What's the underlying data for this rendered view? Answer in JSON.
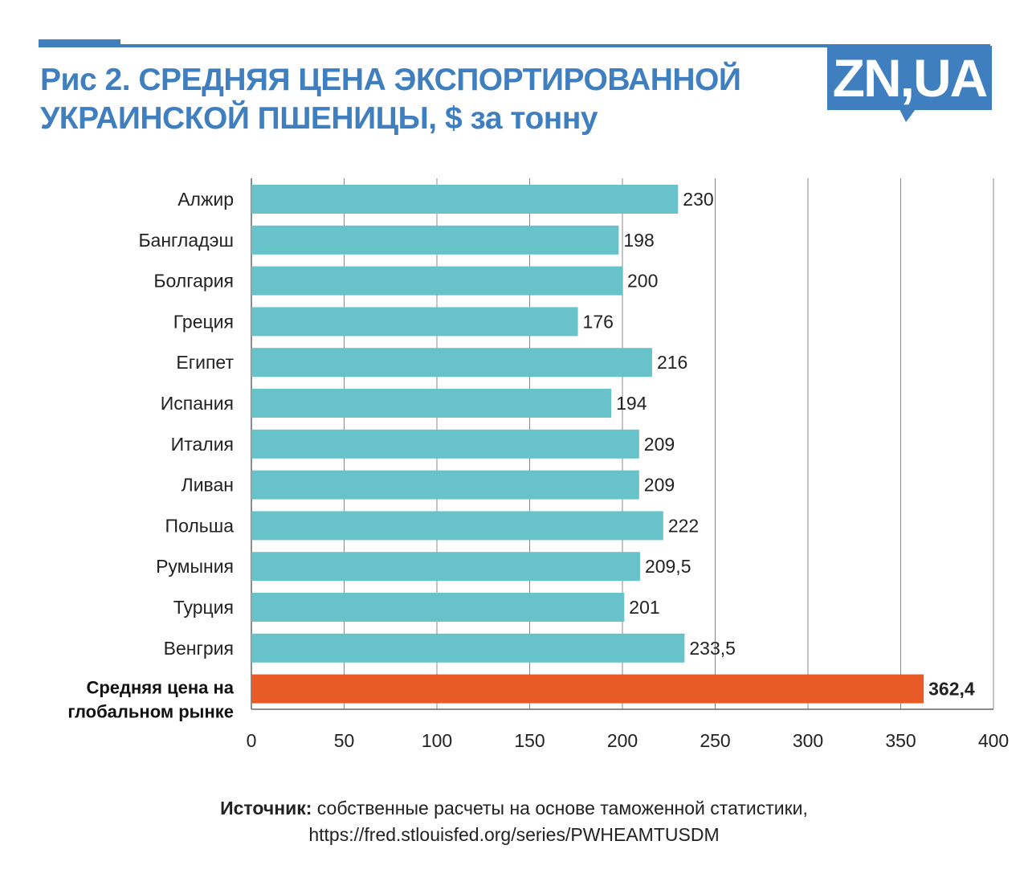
{
  "header": {
    "title": "Рис 2. СРЕДНЯЯ ЦЕНА ЭКСПОРТИРОВАННОЙ УКРАИНСКОЙ ПШЕНИЦЫ, $ за тонну",
    "logo": "ZN,UA"
  },
  "source": {
    "label": "Источник:",
    "text": " собственные расчеты на основе таможенной статистики,",
    "url": "https://fred.stlouisfed.org/series/PWHEAMTUSDM"
  },
  "chart_data": {
    "type": "bar",
    "orientation": "horizontal",
    "title": "Рис 2. СРЕДНЯЯ ЦЕНА ЭКСПОРТИРОВАННОЙ УКРАИНСКОЙ ПШЕНИЦЫ, $ за тонну",
    "categories": [
      "Алжир",
      "Бангладэш",
      "Болгария",
      "Греция",
      "Египет",
      "Испания",
      "Италия",
      "Ливан",
      "Польша",
      "Румыния",
      "Турция",
      "Венгрия",
      "Средняя цена на глобальном рынке"
    ],
    "values": [
      230,
      198,
      200,
      176,
      216,
      194,
      209,
      209,
      222,
      209.5,
      201,
      233.5,
      362.4
    ],
    "value_labels": [
      "230",
      "198",
      "200",
      "176",
      "216",
      "194",
      "209",
      "209",
      "222",
      "209,5",
      "201",
      "233,5",
      "362,4"
    ],
    "highlight_index": 12,
    "colors": {
      "default": "#67c3c9",
      "highlight": "#e85a26",
      "title": "#3f7fbf"
    },
    "xlim": [
      0,
      400
    ],
    "xticks": [
      "0",
      "50",
      "100",
      "150",
      "200",
      "250",
      "300",
      "350",
      "400"
    ],
    "grid": true,
    "xlabel": "",
    "ylabel": ""
  }
}
